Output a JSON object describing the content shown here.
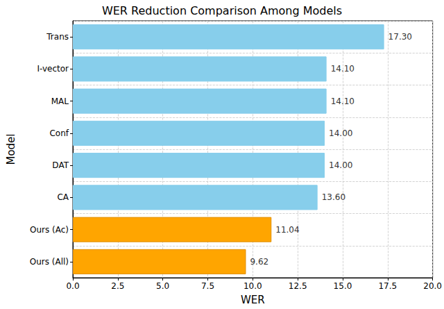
{
  "chart_data": {
    "type": "bar",
    "orientation": "horizontal",
    "title": "WER Reduction Comparison Among Models",
    "xlabel": "WER",
    "ylabel": "Model",
    "categories": [
      "Trans",
      "I-vector",
      "MAL",
      "Conf",
      "DAT",
      "CA",
      "Ours (Ac)",
      "Ours (All)"
    ],
    "values": [
      17.3,
      14.1,
      14.1,
      14.0,
      14.0,
      13.6,
      11.04,
      9.62
    ],
    "value_labels": [
      "17.30",
      "14.10",
      "14.10",
      "14.00",
      "14.00",
      "13.60",
      "11.04",
      "9.62"
    ],
    "colors": [
      "#87ceeb",
      "#87ceeb",
      "#87ceeb",
      "#87ceeb",
      "#87ceeb",
      "#87ceeb",
      "#ffa500",
      "#ffa500"
    ],
    "xlim": [
      0,
      20
    ],
    "xticks": [
      {
        "value": 0,
        "label": "0.0"
      },
      {
        "value": 2.5,
        "label": "2.5"
      },
      {
        "value": 5,
        "label": "5.0"
      },
      {
        "value": 7.5,
        "label": "7.5"
      },
      {
        "value": 10,
        "label": "10.0"
      },
      {
        "value": 12.5,
        "label": "12.5"
      },
      {
        "value": 15,
        "label": "15.0"
      },
      {
        "value": 17.5,
        "label": "17.5"
      },
      {
        "value": 20,
        "label": "20.0"
      }
    ],
    "grid": true,
    "data_labels": true
  }
}
